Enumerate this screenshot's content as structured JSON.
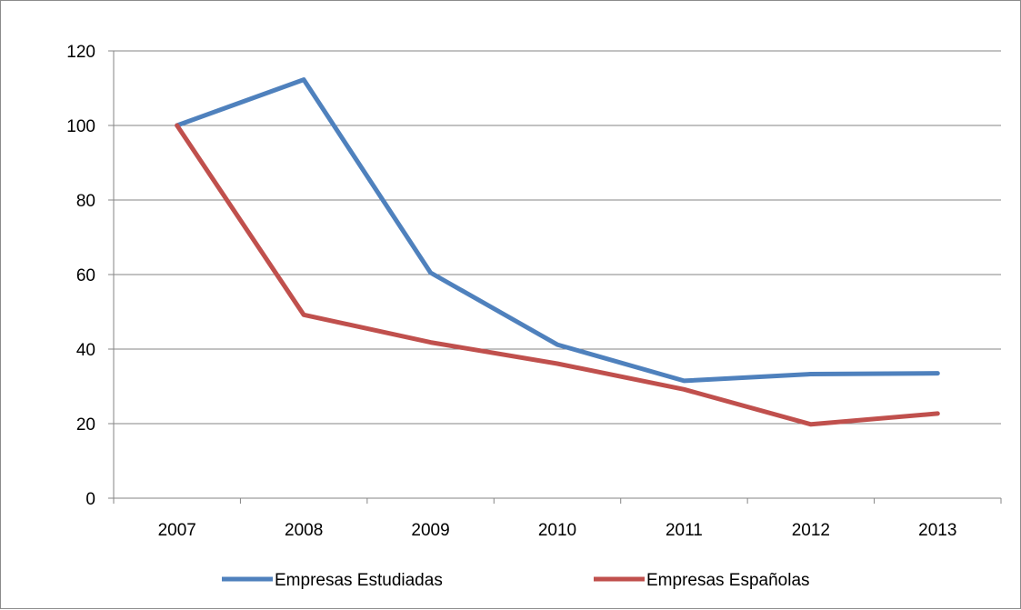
{
  "chart_data": {
    "type": "line",
    "title": "",
    "xlabel": "",
    "ylabel": "",
    "categories": [
      "2007",
      "2008",
      "2009",
      "2010",
      "2011",
      "2012",
      "2013"
    ],
    "ylim": [
      0,
      120
    ],
    "yticks": [
      0,
      20,
      40,
      60,
      80,
      100,
      120
    ],
    "grid": true,
    "legend_position": "bottom",
    "series": [
      {
        "name": "Empresas Estudiadas",
        "color": "#4f81bd",
        "values": [
          100,
          112.3,
          60.5,
          41.2,
          31.5,
          33.3,
          33.5
        ]
      },
      {
        "name": "Empresas Españolas",
        "color": "#c0504d",
        "values": [
          100,
          49.2,
          41.8,
          36.1,
          29.2,
          19.8,
          22.7
        ]
      }
    ]
  }
}
